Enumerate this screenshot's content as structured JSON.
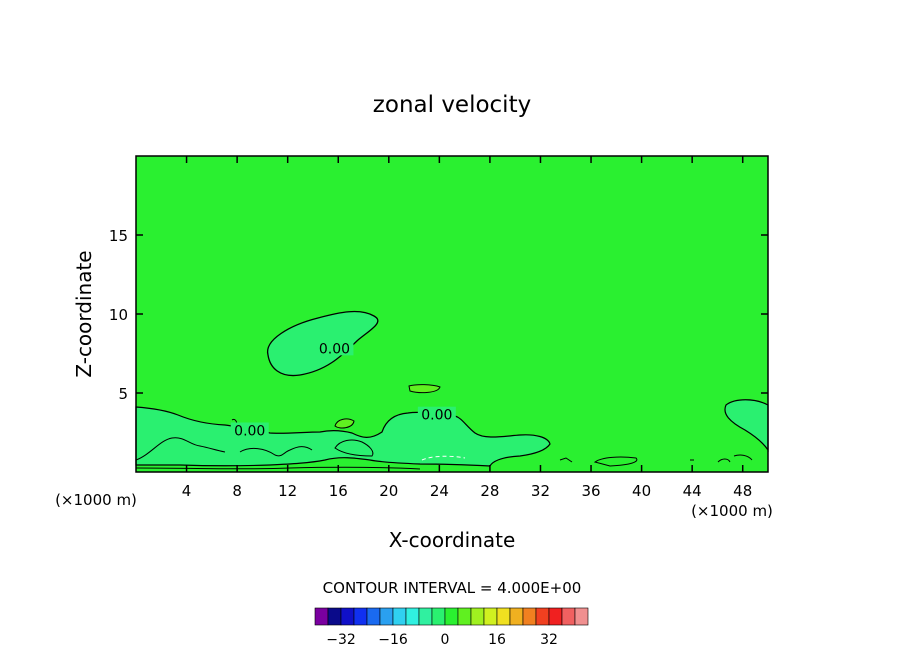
{
  "chart_data": {
    "type": "contour",
    "title": "zonal velocity",
    "xlabel": "X-coordinate",
    "ylabel": "Z-coordinate",
    "x_unit_left": "(×1000 m)",
    "x_unit_right": "(×1000 m)",
    "xlim": [
      0,
      50
    ],
    "ylim": [
      0,
      20
    ],
    "x_ticks": [
      4,
      8,
      12,
      16,
      20,
      24,
      28,
      32,
      36,
      40,
      44,
      48
    ],
    "y_ticks": [
      5,
      10,
      15
    ],
    "contour_interval_text": "CONTOUR INTERVAL = 4.000E+00",
    "contour_labels": [
      {
        "text": "0.00",
        "x": 15.7,
        "z": 7.7
      },
      {
        "text": "0.00",
        "x": 9.0,
        "z": 2.5
      },
      {
        "text": "0.00",
        "x": 23.8,
        "z": 3.5
      }
    ],
    "colorbar": {
      "colors": [
        "#7a00a0",
        "#0a0a8a",
        "#1010c8",
        "#1030f0",
        "#1a6af0",
        "#2aa0f0",
        "#30d0f0",
        "#30f0e0",
        "#30f0a0",
        "#2af070",
        "#2af030",
        "#60f020",
        "#a0f020",
        "#d0f020",
        "#f0e020",
        "#f0b020",
        "#f08020",
        "#f04020",
        "#f02020",
        "#f06060",
        "#f09090"
      ],
      "tick_labels": [
        "-32",
        "-16",
        "0",
        "16",
        "32"
      ],
      "tick_values": [
        -32,
        -16,
        0,
        16,
        32
      ],
      "min": -40,
      "max": 44
    },
    "background_color": "#2af030",
    "negative_region_color": "#2af070",
    "positive_region_color": "#60f020"
  }
}
